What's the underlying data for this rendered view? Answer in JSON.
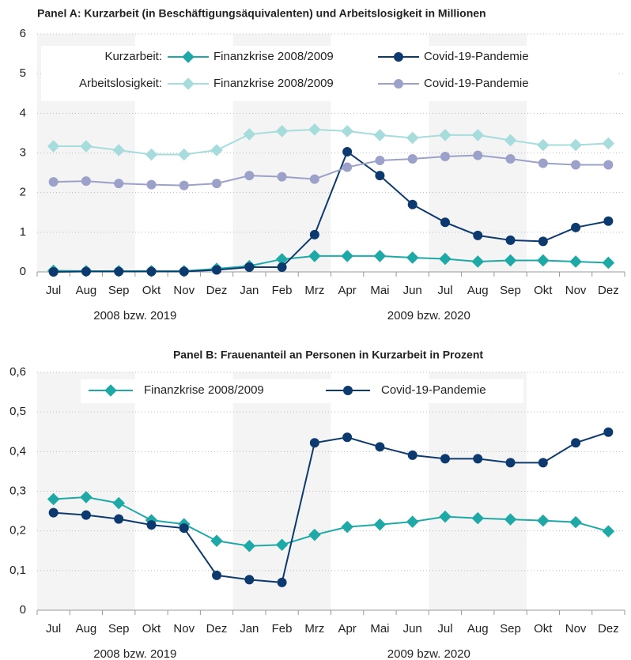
{
  "chart_data": [
    {
      "type": "line",
      "title": "Panel A: Kurzarbeit (in Beschäftigungsäquivalenten) und Arbeitslosigkeit in Millionen",
      "categories": [
        "Jul",
        "Aug",
        "Sep",
        "Okt",
        "Nov",
        "Dez",
        "Jan",
        "Feb",
        "Mrz",
        "Apr",
        "Mai",
        "Jun",
        "Jul",
        "Aug",
        "Sep",
        "Okt",
        "Nov",
        "Dez"
      ],
      "category_groups": [
        "2008 bzw. 2019",
        "2009 bzw. 2020"
      ],
      "ylim": [
        0,
        6
      ],
      "yticks": [
        0,
        1,
        2,
        3,
        4,
        5,
        6
      ],
      "grid": true,
      "series": [
        {
          "group": "Kurzarbeit:",
          "name": "Finanzkrise 2008/2009",
          "color": "#1fa9a6",
          "marker": "diamond",
          "values": [
            0.03,
            0.02,
            0.02,
            0.02,
            0.02,
            0.08,
            0.15,
            0.32,
            0.4,
            0.4,
            0.4,
            0.36,
            0.33,
            0.26,
            0.29,
            0.29,
            0.26,
            0.23
          ]
        },
        {
          "group": "Kurzarbeit:",
          "name": "Covid-19-Pandemie",
          "color": "#0d3a6e",
          "marker": "circle",
          "values": [
            0,
            0.01,
            0.01,
            0.01,
            0.01,
            0.05,
            0.12,
            0.12,
            0.94,
            3.03,
            2.43,
            1.7,
            1.25,
            0.92,
            0.8,
            0.77,
            1.12,
            1.28
          ]
        },
        {
          "group": "Arbeitslosigkeit:",
          "name": "Finanzkrise 2008/2009",
          "color": "#a6dcdb",
          "marker": "diamond",
          "values": [
            3.17,
            3.17,
            3.07,
            2.96,
            2.96,
            3.07,
            3.47,
            3.55,
            3.59,
            3.55,
            3.45,
            3.38,
            3.45,
            3.45,
            3.32,
            3.2,
            3.2,
            3.24
          ]
        },
        {
          "group": "Arbeitslosigkeit:",
          "name": "Covid-19-Pandemie",
          "color": "#9ca1c9",
          "marker": "circle",
          "values": [
            2.27,
            2.29,
            2.23,
            2.2,
            2.18,
            2.23,
            2.43,
            2.4,
            2.34,
            2.64,
            2.81,
            2.85,
            2.91,
            2.94,
            2.85,
            2.74,
            2.7,
            2.7
          ]
        }
      ]
    },
    {
      "type": "line",
      "title": "Panel B: Frauenanteil an Personen in Kurzarbeit in Prozent",
      "categories": [
        "Jul",
        "Aug",
        "Sep",
        "Okt",
        "Nov",
        "Dez",
        "Jan",
        "Feb",
        "Mrz",
        "Apr",
        "Mai",
        "Jun",
        "Jul",
        "Aug",
        "Sep",
        "Okt",
        "Nov",
        "Dez"
      ],
      "category_groups": [
        "2008 bzw. 2019",
        "2009 bzw. 2020"
      ],
      "ylim": [
        0,
        0.6
      ],
      "yticks": [
        0,
        {
          "value": 0.1,
          "label": "0,1"
        },
        {
          "value": 0.2,
          "label": "0,2"
        },
        {
          "value": 0.3,
          "label": "0,3"
        },
        {
          "value": 0.4,
          "label": "0,4"
        },
        {
          "value": 0.5,
          "label": "0,5"
        },
        {
          "value": 0.6,
          "label": "0,6"
        }
      ],
      "grid": true,
      "series": [
        {
          "name": "Finanzkrise 2008/2009",
          "color": "#1fa9a6",
          "marker": "diamond",
          "values": [
            0.28,
            0.285,
            0.27,
            0.227,
            0.217,
            0.175,
            0.162,
            0.165,
            0.19,
            0.21,
            0.216,
            0.223,
            0.236,
            0.232,
            0.229,
            0.226,
            0.222,
            0.199
          ]
        },
        {
          "name": "Covid-19-Pandemie",
          "color": "#0d3a6e",
          "marker": "circle",
          "values": [
            0.246,
            0.24,
            0.23,
            0.215,
            0.207,
            0.088,
            0.077,
            0.07,
            0.422,
            0.436,
            0.412,
            0.391,
            0.382,
            0.382,
            0.372,
            0.372,
            0.422,
            0.449
          ]
        }
      ]
    }
  ]
}
